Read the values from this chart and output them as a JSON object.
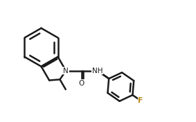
{
  "background_color": "#ffffff",
  "line_color": "#1a1a1a",
  "line_width": 1.8,
  "font_size": 7.5,
  "label_color": "#1a1a1a",
  "F_color": "#b8860b",
  "figsize": [
    2.83,
    1.77
  ],
  "dpi": 100,
  "xlim": [
    0,
    10
  ],
  "ylim": [
    0,
    6.27
  ]
}
